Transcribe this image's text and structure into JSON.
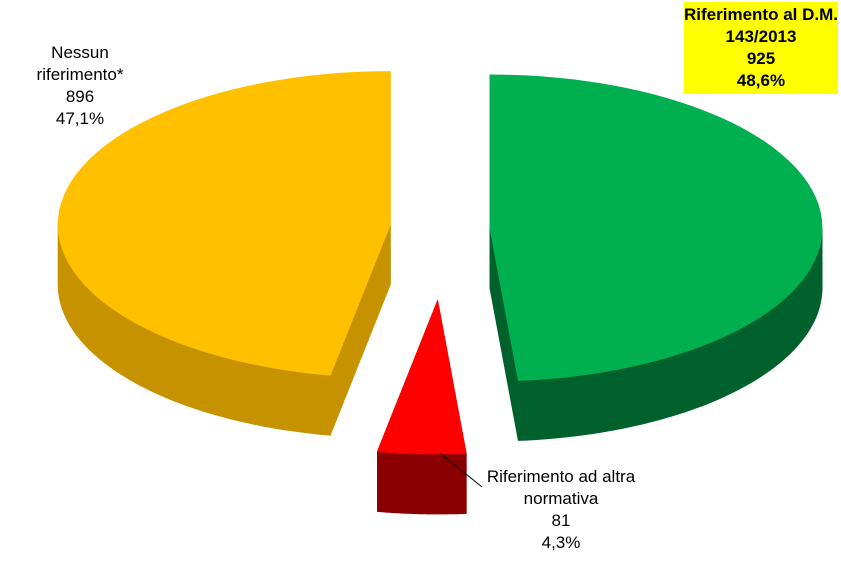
{
  "chart_data": {
    "type": "pie3d",
    "categories": [
      "Riferimento al D.M. 143/2013",
      "Riferimento ad altra normativa",
      "Nessun riferimento*"
    ],
    "values": [
      925,
      81,
      896
    ],
    "shares": {
      "values": [
        48.6,
        4.3,
        47.1
      ],
      "value_labels": [
        "48,6%",
        "4,3%",
        "47,1%"
      ]
    },
    "colors": [
      "#00b050",
      "#ff0000",
      "#ffc000"
    ],
    "side_colors": [
      "#00612c",
      "#8a0000",
      "#c79200"
    ],
    "highlight_color": "#ffff00"
  }
}
